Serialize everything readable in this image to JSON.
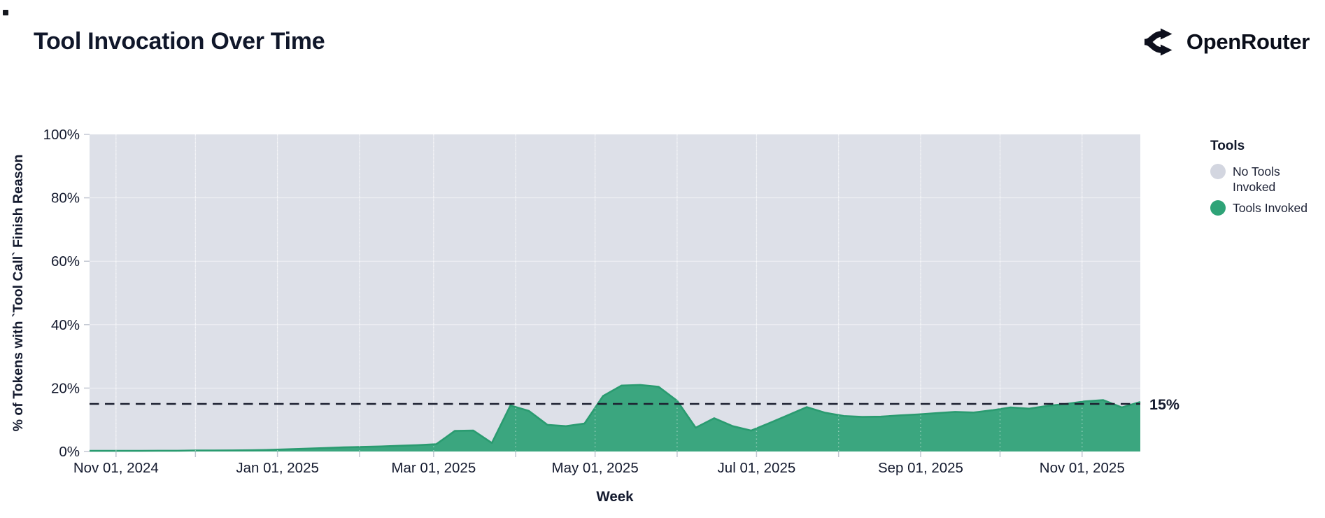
{
  "header": {
    "title": "Tool Invocation Over Time",
    "brand": "OpenRouter"
  },
  "legend": {
    "title": "Tools",
    "items": [
      {
        "label": "No Tools Invoked",
        "color": "#d3d6e0"
      },
      {
        "label": "Tools Invoked",
        "color": "#2ea377"
      }
    ]
  },
  "colors": {
    "plot_bg": "#dde0e8",
    "grid_line": "rgba(255,255,255,0.55)",
    "grid_dotted_over": "rgba(255,255,255,0.45)",
    "area_green": "#3ba67f",
    "area_green_edge": "#2a9b70",
    "no_tools_gray": "#dde0e8",
    "text": "#141a2e",
    "dashed_line": "#1c2030",
    "tick_mark": "#c2c7d2"
  },
  "chart_data": {
    "type": "area",
    "stacked": true,
    "title": "Tool Invocation Over Time",
    "xlabel": "Week",
    "ylabel": "% of Tokens with `Tool Call` Finish Reason",
    "ylim": [
      0,
      100
    ],
    "grid": true,
    "legend_position": "right",
    "x_domain": [
      "2024-10-22",
      "2025-11-23"
    ],
    "y_ticks": [
      {
        "value": 0,
        "label": "0%"
      },
      {
        "value": 20,
        "label": "20%"
      },
      {
        "value": 40,
        "label": "40%"
      },
      {
        "value": 60,
        "label": "60%"
      },
      {
        "value": 80,
        "label": "80%"
      },
      {
        "value": 100,
        "label": "100%"
      }
    ],
    "x_ticks": [
      {
        "date": "2024-11-01",
        "label": "Nov 01, 2024"
      },
      {
        "date": "2025-01-01",
        "label": "Jan 01, 2025"
      },
      {
        "date": "2025-03-01",
        "label": "Mar 01, 2025"
      },
      {
        "date": "2025-05-01",
        "label": "May 01, 2025"
      },
      {
        "date": "2025-07-01",
        "label": "Jul 01, 2025"
      },
      {
        "date": "2025-09-01",
        "label": "Sep 01, 2025"
      },
      {
        "date": "2025-11-01",
        "label": "Nov 01, 2025"
      }
    ],
    "reference_line": {
      "value": 15,
      "label": "15%"
    },
    "series": [
      {
        "name": "Tools Invoked",
        "color": "#3ba67f",
        "x": [
          "2024-10-22",
          "2024-10-27",
          "2024-11-03",
          "2024-11-10",
          "2024-11-17",
          "2024-11-24",
          "2024-12-01",
          "2024-12-08",
          "2024-12-15",
          "2024-12-22",
          "2024-12-29",
          "2025-01-05",
          "2025-01-12",
          "2025-01-19",
          "2025-01-26",
          "2025-02-02",
          "2025-02-09",
          "2025-02-16",
          "2025-02-23",
          "2025-03-02",
          "2025-03-09",
          "2025-03-16",
          "2025-03-23",
          "2025-03-30",
          "2025-04-06",
          "2025-04-13",
          "2025-04-20",
          "2025-04-27",
          "2025-05-04",
          "2025-05-11",
          "2025-05-18",
          "2025-05-25",
          "2025-06-01",
          "2025-06-08",
          "2025-06-15",
          "2025-06-22",
          "2025-06-29",
          "2025-07-06",
          "2025-07-13",
          "2025-07-20",
          "2025-07-27",
          "2025-08-03",
          "2025-08-10",
          "2025-08-17",
          "2025-08-24",
          "2025-08-31",
          "2025-09-07",
          "2025-09-14",
          "2025-09-21",
          "2025-09-28",
          "2025-10-05",
          "2025-10-12",
          "2025-10-19",
          "2025-10-26",
          "2025-11-02",
          "2025-11-09",
          "2025-11-16",
          "2025-11-23"
        ],
        "values": [
          0.2,
          0.2,
          0.2,
          0.2,
          0.25,
          0.25,
          0.3,
          0.3,
          0.35,
          0.4,
          0.5,
          0.7,
          0.9,
          1.1,
          1.3,
          1.45,
          1.6,
          1.8,
          2.0,
          2.3,
          6.5,
          6.6,
          2.7,
          14.5,
          12.8,
          8.4,
          8.0,
          8.8,
          17.5,
          20.8,
          21.0,
          20.4,
          16.0,
          7.5,
          10.5,
          8.0,
          6.6,
          9.0,
          11.5,
          14.0,
          12.2,
          11.2,
          10.9,
          11.0,
          11.4,
          11.7,
          12.1,
          12.5,
          12.3,
          13.0,
          13.9,
          13.5,
          14.4,
          15.0,
          15.8,
          16.2,
          13.9,
          15.6
        ]
      },
      {
        "name": "No Tools Invoked",
        "color": "#dde0e8",
        "complement_of": "Tools Invoked",
        "total": 100
      }
    ]
  }
}
